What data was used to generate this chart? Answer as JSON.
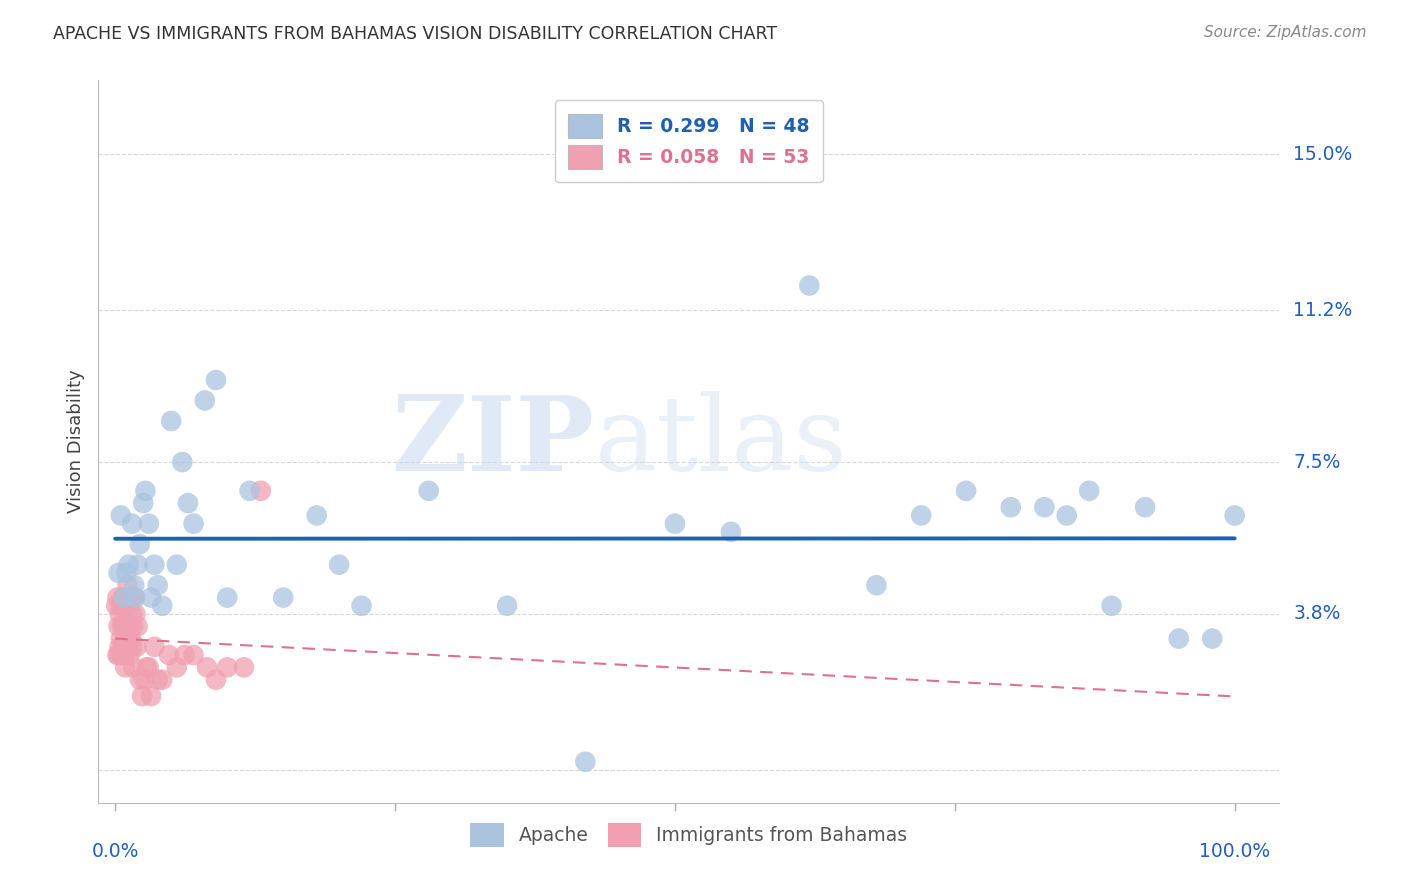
{
  "title": "APACHE VS IMMIGRANTS FROM BAHAMAS VISION DISABILITY CORRELATION CHART",
  "source": "Source: ZipAtlas.com",
  "ylabel": "Vision Disability",
  "yticks": [
    0.0,
    0.038,
    0.075,
    0.112,
    0.15
  ],
  "ytick_labels": [
    "",
    "3.8%",
    "7.5%",
    "11.2%",
    "15.0%"
  ],
  "xlim": [
    -0.015,
    1.04
  ],
  "ylim": [
    -0.008,
    0.168
  ],
  "watermark_zip": "ZIP",
  "watermark_atlas": "atlas",
  "legend_apache_R": "R = 0.299",
  "legend_apache_N": "N = 48",
  "legend_bahamas_R": "R = 0.058",
  "legend_bahamas_N": "N = 53",
  "apache_color": "#aac4e0",
  "bahamas_color": "#f0a0b0",
  "apache_line_color": "#2060b0",
  "bahamas_line_color": "#e07090",
  "apache_x": [
    0.003,
    0.005,
    0.008,
    0.01,
    0.012,
    0.015,
    0.017,
    0.018,
    0.02,
    0.022,
    0.025,
    0.027,
    0.03,
    0.032,
    0.035,
    0.038,
    0.042,
    0.05,
    0.055,
    0.06,
    0.065,
    0.07,
    0.08,
    0.09,
    0.1,
    0.12,
    0.15,
    0.18,
    0.2,
    0.22,
    0.28,
    0.35,
    0.42,
    0.5,
    0.55,
    0.62,
    0.68,
    0.72,
    0.76,
    0.8,
    0.83,
    0.85,
    0.87,
    0.89,
    0.92,
    0.95,
    0.98,
    1.0
  ],
  "apache_y": [
    0.048,
    0.062,
    0.042,
    0.048,
    0.05,
    0.06,
    0.045,
    0.042,
    0.05,
    0.055,
    0.065,
    0.068,
    0.06,
    0.042,
    0.05,
    0.045,
    0.04,
    0.085,
    0.05,
    0.075,
    0.065,
    0.06,
    0.09,
    0.095,
    0.042,
    0.068,
    0.042,
    0.062,
    0.05,
    0.04,
    0.068,
    0.04,
    0.002,
    0.06,
    0.058,
    0.118,
    0.045,
    0.062,
    0.068,
    0.064,
    0.064,
    0.062,
    0.068,
    0.04,
    0.064,
    0.032,
    0.032,
    0.062
  ],
  "bahamas_x": [
    0.001,
    0.002,
    0.002,
    0.003,
    0.003,
    0.004,
    0.004,
    0.005,
    0.005,
    0.006,
    0.006,
    0.007,
    0.007,
    0.008,
    0.008,
    0.009,
    0.009,
    0.01,
    0.01,
    0.011,
    0.011,
    0.012,
    0.012,
    0.013,
    0.013,
    0.014,
    0.014,
    0.015,
    0.015,
    0.016,
    0.016,
    0.017,
    0.018,
    0.019,
    0.02,
    0.022,
    0.024,
    0.026,
    0.028,
    0.03,
    0.032,
    0.035,
    0.038,
    0.042,
    0.048,
    0.055,
    0.062,
    0.07,
    0.082,
    0.09,
    0.1,
    0.115,
    0.13
  ],
  "bahamas_y": [
    0.04,
    0.042,
    0.028,
    0.035,
    0.028,
    0.038,
    0.03,
    0.04,
    0.032,
    0.035,
    0.028,
    0.042,
    0.03,
    0.035,
    0.028,
    0.032,
    0.025,
    0.04,
    0.032,
    0.045,
    0.032,
    0.04,
    0.032,
    0.035,
    0.028,
    0.042,
    0.032,
    0.038,
    0.03,
    0.035,
    0.025,
    0.042,
    0.038,
    0.03,
    0.035,
    0.022,
    0.018,
    0.022,
    0.025,
    0.025,
    0.018,
    0.03,
    0.022,
    0.022,
    0.028,
    0.025,
    0.028,
    0.028,
    0.025,
    0.022,
    0.025,
    0.025,
    0.068
  ],
  "background_color": "#ffffff",
  "grid_color": "#d8d8d8",
  "title_color": "#333333",
  "axis_label_color": "#2060c0",
  "right_axis_label_color": "#2060c0"
}
